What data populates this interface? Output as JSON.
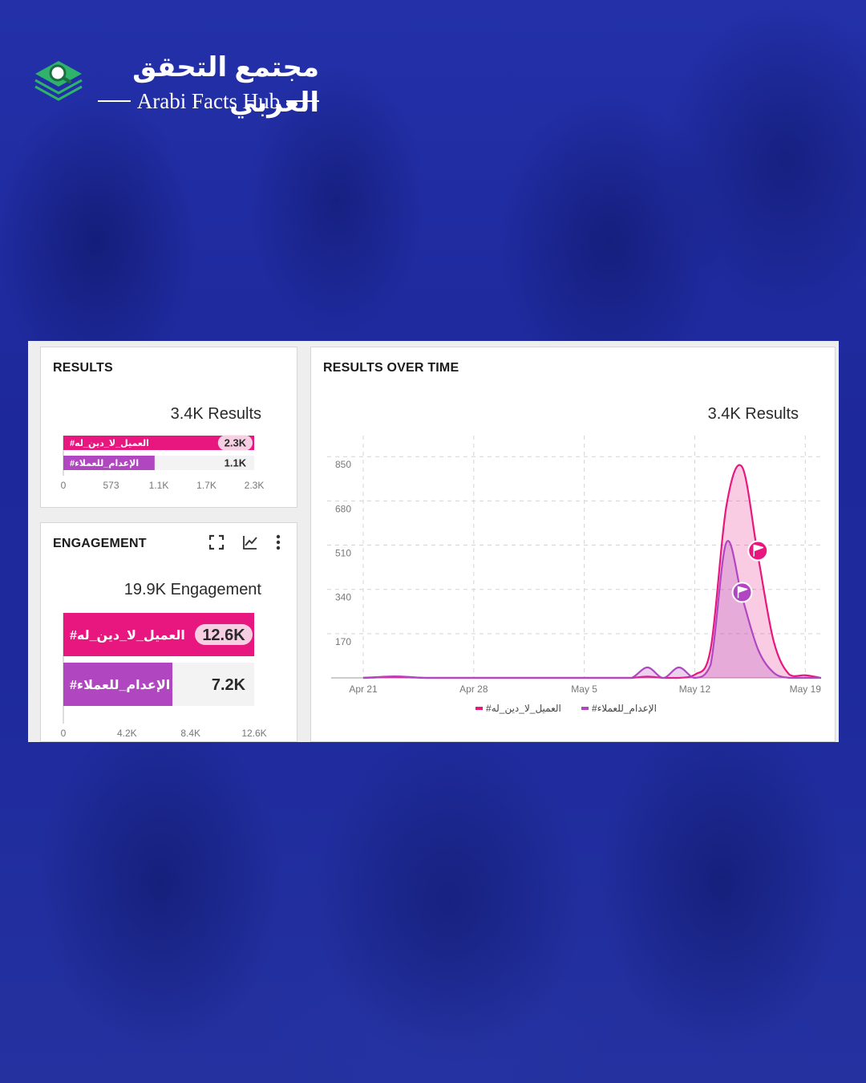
{
  "header": {
    "brand_arabic": "مجتمع التحقق العربي",
    "brand_english": "Arabi Facts Hub",
    "logo_icon": "magnifier-layers-icon"
  },
  "colors": {
    "background": "#1f2b9a",
    "series_1": "#e8177f",
    "series_2": "#b047c1",
    "card": "#ffffff"
  },
  "results_card": {
    "title": "RESULTS",
    "total": "3.4K Results"
  },
  "engagement_card": {
    "title": "ENGAGEMENT",
    "total": "19.9K Engagement",
    "tools": [
      "expand-icon",
      "line-chart-icon",
      "more-vertical-icon"
    ]
  },
  "time_card": {
    "title": "RESULTS OVER TIME",
    "total": "3.4K Results"
  },
  "chart_data": [
    {
      "type": "bar",
      "orientation": "horizontal",
      "categories": [
        "#العميل_لا_دين_له",
        "#الإعدام_للعملاء"
      ],
      "values": [
        2300,
        1100
      ],
      "value_labels": [
        "2.3K",
        "1.1K"
      ],
      "xticks": [
        "0",
        "573",
        "1.1K",
        "1.7K",
        "2.3K"
      ],
      "xlim": [
        0,
        2300
      ]
    },
    {
      "type": "bar",
      "orientation": "horizontal",
      "categories": [
        "#العميل_لا_دين_له",
        "#الإعدام_للعملاء"
      ],
      "values": [
        12600,
        7200
      ],
      "value_labels": [
        "12.6K",
        "7.2K"
      ],
      "xticks": [
        "0",
        "4.2K",
        "8.4K",
        "12.6K"
      ],
      "xlim": [
        0,
        12600
      ]
    },
    {
      "type": "area",
      "x": [
        "Apr 21",
        "Apr 23",
        "Apr 25",
        "Apr 27",
        "Apr 29",
        "May 1",
        "May 3",
        "May 5",
        "May 7",
        "May 8",
        "May 9",
        "May 10",
        "May 11",
        "May 12",
        "May 13",
        "May 14",
        "May 15",
        "May 16",
        "May 17",
        "May 18",
        "May 19",
        "May 20"
      ],
      "xticks": [
        "Apr 21",
        "Apr 28",
        "May 5",
        "May 12",
        "May 19"
      ],
      "yticks": [
        "170",
        "340",
        "510",
        "680",
        "850"
      ],
      "ylim": [
        0,
        900
      ],
      "grid": true,
      "legend_position": "bottom",
      "series": [
        {
          "name": "#العميل_لا_دين_له",
          "values": [
            0,
            3,
            0,
            0,
            0,
            0,
            0,
            0,
            0,
            0,
            5,
            0,
            0,
            12,
            110,
            660,
            810,
            470,
            140,
            12,
            10,
            0
          ]
        },
        {
          "name": "#الإعدام_للعملاء",
          "values": [
            0,
            6,
            0,
            0,
            0,
            0,
            0,
            0,
            0,
            0,
            40,
            0,
            40,
            0,
            50,
            520,
            310,
            110,
            20,
            0,
            0,
            0
          ]
        }
      ],
      "annotations": [
        {
          "type": "flag",
          "series": "#العميل_لا_دين_له",
          "x": "May 16",
          "icon": "flag-icon"
        },
        {
          "type": "flag",
          "series": "#الإعدام_للعملاء",
          "x": "May 15",
          "icon": "flag-icon"
        }
      ]
    }
  ]
}
